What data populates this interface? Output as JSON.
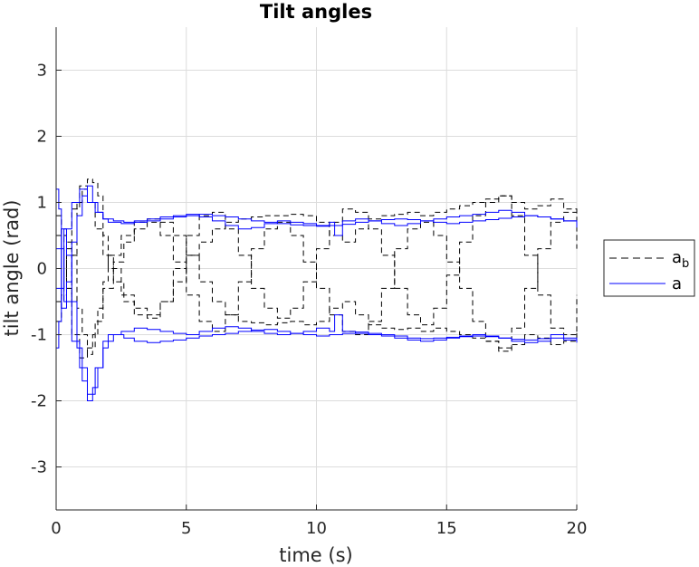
{
  "chart_data": {
    "type": "line",
    "title": "Tilt angles",
    "xlabel": "time (s)",
    "ylabel": "tilt angle (rad)",
    "xlim": [
      0,
      20
    ],
    "ylim": [
      -3.65,
      3.65
    ],
    "xticks": [
      0,
      5,
      10,
      15,
      20
    ],
    "xtick_labels": [
      "0",
      "5",
      "10",
      "15",
      "20"
    ],
    "yticks": [
      -3,
      -2,
      -1,
      0,
      1,
      2,
      3
    ],
    "ytick_labels": [
      "-3",
      "-2",
      "-1",
      "0",
      "1",
      "2",
      "3"
    ],
    "grid": true,
    "legend_placement": "outside-right",
    "legend": [
      {
        "label": "a",
        "subscript": "b",
        "style": "dashed",
        "color": "#000000"
      },
      {
        "label": "a",
        "style": "solid",
        "color": "#0000ff"
      }
    ],
    "series": [
      {
        "group": "a_b",
        "style": "dashed",
        "color": "#000000",
        "x": [
          0,
          0.2,
          0.4,
          0.6,
          0.8,
          1.0,
          1.2,
          1.4,
          1.6,
          1.8,
          2.0,
          2.5,
          3,
          3.5,
          4,
          4.5,
          5,
          5.5,
          6,
          6.5,
          7,
          7.5,
          8,
          8.5,
          9,
          9.5,
          10,
          10.5,
          11,
          11.5,
          12,
          12.5,
          13,
          13.5,
          14,
          14.5,
          15,
          15.5,
          16,
          16.5,
          17,
          17.5,
          18,
          18.5,
          19,
          19.5,
          20
        ],
        "y": [
          0.8,
          0.5,
          -0.5,
          0.2,
          1.0,
          1.2,
          1.35,
          1.3,
          1.1,
          0.5,
          0.0,
          -0.4,
          -0.6,
          -0.7,
          -0.5,
          -0.2,
          0.2,
          0.4,
          0.6,
          0.7,
          0.75,
          0.78,
          0.8,
          0.8,
          0.82,
          0.8,
          0.7,
          0.5,
          0.4,
          0.6,
          0.75,
          0.8,
          0.82,
          0.85,
          0.8,
          0.85,
          0.9,
          0.95,
          1.0,
          1.05,
          1.1,
          1.0,
          0.9,
          0.95,
          1.05,
          0.9,
          0.5
        ]
      },
      {
        "group": "a_b",
        "style": "dashed",
        "color": "#000000",
        "x": [
          0,
          0.2,
          0.4,
          0.6,
          0.8,
          1.0,
          1.2,
          1.4,
          1.6,
          1.8,
          2.0,
          2.5,
          3,
          3.5,
          4,
          4.5,
          5,
          5.5,
          6,
          6.5,
          7,
          7.5,
          8,
          8.5,
          9,
          9.5,
          10,
          10.5,
          11,
          11.5,
          12,
          12.5,
          13,
          13.5,
          14,
          14.5,
          15,
          15.5,
          16,
          16.5,
          17,
          17.5,
          18,
          18.5,
          19,
          19.5,
          20
        ],
        "y": [
          -0.8,
          -0.4,
          0.4,
          0.2,
          -0.6,
          -1.0,
          -1.3,
          -1.0,
          -0.6,
          -0.2,
          0.2,
          0.5,
          0.7,
          0.75,
          0.7,
          0.5,
          0.2,
          -0.2,
          -0.5,
          -0.7,
          -0.8,
          -0.82,
          -0.85,
          -0.82,
          -0.8,
          -0.85,
          -0.8,
          -0.6,
          -0.5,
          -0.7,
          -0.85,
          -0.9,
          -0.92,
          -0.9,
          -0.95,
          -0.9,
          -0.95,
          -1.0,
          -1.05,
          -1.1,
          -1.2,
          -1.15,
          -1.0,
          -1.05,
          -1.15,
          -1.1,
          -0.9
        ]
      },
      {
        "group": "a_b",
        "style": "dashed",
        "color": "#000000",
        "x": [
          0,
          0.3,
          0.6,
          0.9,
          1.2,
          1.5,
          1.8,
          2.2,
          2.6,
          3.0,
          3.5,
          4,
          4.5,
          5,
          5.5,
          6,
          6.5,
          7,
          7.5,
          8,
          8.5,
          9,
          9.5,
          10,
          10.5,
          11,
          11.5,
          12,
          12.5,
          13,
          13.5,
          14,
          14.5,
          15,
          15.5,
          16,
          16.5,
          17,
          17.5,
          18,
          18.5,
          19,
          19.5,
          20
        ],
        "y": [
          0.5,
          -0.3,
          -1.0,
          -1.35,
          -1.2,
          -0.8,
          -0.3,
          0.1,
          0.4,
          0.6,
          0.7,
          0.5,
          0.1,
          -0.4,
          -0.8,
          -0.95,
          -0.7,
          -0.2,
          0.3,
          0.6,
          0.7,
          0.5,
          0.1,
          -0.3,
          -0.7,
          -0.95,
          -1.0,
          -0.8,
          -0.3,
          0.3,
          0.6,
          0.7,
          0.5,
          0.1,
          -0.3,
          -0.8,
          -1.1,
          -1.25,
          -0.9,
          -0.3,
          0.3,
          0.7,
          0.85,
          0.3
        ]
      },
      {
        "group": "a_b",
        "style": "dashed",
        "color": "#000000",
        "x": [
          0,
          0.3,
          0.6,
          0.9,
          1.2,
          1.5,
          1.8,
          2.2,
          2.6,
          3.0,
          3.5,
          4,
          4.5,
          5,
          5.5,
          6,
          6.5,
          7,
          7.5,
          8,
          8.5,
          9,
          9.5,
          10,
          10.5,
          11,
          11.5,
          12,
          12.5,
          13,
          13.5,
          14,
          14.5,
          15,
          15.5,
          16,
          16.5,
          17,
          17.5,
          18,
          18.5,
          19,
          19.5,
          20
        ],
        "y": [
          -0.5,
          0.3,
          0.9,
          1.25,
          1.0,
          0.6,
          0.2,
          -0.2,
          -0.5,
          -0.7,
          -0.75,
          -0.5,
          0.0,
          0.5,
          0.8,
          0.85,
          0.6,
          0.2,
          -0.3,
          -0.6,
          -0.75,
          -0.6,
          -0.2,
          0.3,
          0.7,
          0.9,
          0.85,
          0.6,
          0.2,
          -0.3,
          -0.7,
          -0.85,
          -0.6,
          -0.1,
          0.4,
          0.8,
          1.0,
          1.1,
          0.8,
          0.2,
          -0.4,
          -0.9,
          -1.0,
          -0.4
        ]
      },
      {
        "group": "a",
        "style": "solid",
        "color": "#0000ff",
        "x": [
          0,
          0.1,
          0.2,
          0.4,
          0.6,
          0.8,
          1.0,
          1.2,
          1.4,
          1.6,
          1.8,
          2.0,
          2.5,
          3,
          3.5,
          4,
          4.5,
          5,
          5.5,
          6,
          6.5,
          7,
          7.5,
          8,
          8.5,
          9,
          9.5,
          10,
          10.5,
          10.7,
          11,
          11.5,
          12,
          12.5,
          13,
          13.5,
          14,
          14.5,
          15,
          15.5,
          16,
          16.5,
          17,
          17.5,
          18,
          18.5,
          19,
          19.5,
          20
        ],
        "y": [
          1.2,
          0.9,
          -0.6,
          -0.2,
          0.4,
          0.8,
          1.1,
          1.25,
          1.0,
          0.85,
          0.75,
          0.7,
          0.68,
          0.72,
          0.75,
          0.78,
          0.8,
          0.82,
          0.78,
          0.72,
          0.65,
          0.6,
          0.62,
          0.68,
          0.72,
          0.7,
          0.68,
          0.65,
          0.7,
          0.5,
          0.72,
          0.75,
          0.72,
          0.68,
          0.65,
          0.68,
          0.72,
          0.75,
          0.78,
          0.8,
          0.82,
          0.85,
          0.88,
          0.85,
          0.8,
          0.78,
          0.75,
          0.72,
          0.7
        ]
      },
      {
        "group": "a",
        "style": "solid",
        "color": "#0000ff",
        "x": [
          0,
          0.1,
          0.2,
          0.4,
          0.6,
          0.8,
          1.0,
          1.2,
          1.4,
          1.6,
          1.8,
          2.0,
          2.5,
          3,
          3.5,
          4,
          4.5,
          5,
          5.5,
          6,
          6.5,
          7,
          7.5,
          8,
          8.5,
          9,
          9.5,
          10,
          10.5,
          10.7,
          11,
          11.5,
          12,
          12.5,
          13,
          13.5,
          14,
          14.5,
          15,
          15.5,
          16,
          16.5,
          17,
          17.5,
          18,
          18.5,
          19,
          19.5,
          20
        ],
        "y": [
          -1.2,
          -0.8,
          0.6,
          0.2,
          -0.5,
          -1.2,
          -1.7,
          -2.0,
          -1.8,
          -1.5,
          -1.2,
          -1.0,
          -0.95,
          -0.9,
          -0.92,
          -0.95,
          -0.98,
          -1.0,
          -0.95,
          -0.9,
          -0.88,
          -0.9,
          -0.95,
          -0.98,
          -1.0,
          -0.98,
          -0.95,
          -0.9,
          -0.95,
          -0.7,
          -0.95,
          -0.98,
          -1.0,
          -1.02,
          -1.05,
          -1.08,
          -1.1,
          -1.08,
          -1.05,
          -1.02,
          -1.0,
          -1.02,
          -1.05,
          -1.1,
          -1.12,
          -1.1,
          -1.05,
          -1.08,
          -1.1
        ]
      },
      {
        "group": "a",
        "style": "solid",
        "color": "#0000ff",
        "x": [
          0,
          0.3,
          0.6,
          0.9,
          1.2,
          1.5,
          1.8,
          2.2,
          2.6,
          3,
          3.5,
          4,
          4.5,
          5,
          5.5,
          6,
          6.5,
          7,
          7.5,
          8,
          8.5,
          9,
          9.5,
          10,
          10.5,
          11,
          11.5,
          12,
          12.5,
          13,
          13.5,
          14,
          14.5,
          15,
          15.5,
          16,
          16.5,
          17,
          17.5,
          18,
          18.5,
          19,
          19.5,
          20
        ],
        "y": [
          0.3,
          -0.5,
          -1.1,
          -1.5,
          -1.9,
          -1.5,
          -1.1,
          -1.0,
          -1.05,
          -1.1,
          -1.12,
          -1.1,
          -1.08,
          -1.05,
          -1.02,
          -1.0,
          -0.98,
          -0.95,
          -0.93,
          -0.92,
          -0.95,
          -0.98,
          -1.0,
          -1.02,
          -1.0,
          -0.98,
          -0.96,
          -0.98,
          -1.0,
          -1.02,
          -1.05,
          -1.06,
          -1.05,
          -1.04,
          -1.03,
          -1.02,
          -1.03,
          -1.05,
          -1.07,
          -1.08,
          -1.06,
          -1.0,
          -1.05,
          -1.12
        ]
      },
      {
        "group": "a",
        "style": "solid",
        "color": "#0000ff",
        "x": [
          0,
          0.3,
          0.6,
          0.9,
          1.2,
          1.5,
          1.8,
          2.2,
          2.6,
          3,
          3.5,
          4,
          4.5,
          5,
          5.5,
          6,
          6.5,
          7,
          7.5,
          8,
          8.5,
          9,
          9.5,
          10,
          10.5,
          11,
          11.5,
          12,
          12.5,
          13,
          13.5,
          14,
          14.5,
          15,
          15.5,
          16,
          16.5,
          17,
          17.5,
          18,
          18.5,
          19,
          19.5,
          20
        ],
        "y": [
          -0.3,
          0.6,
          1.0,
          1.2,
          1.0,
          0.85,
          0.75,
          0.72,
          0.7,
          0.7,
          0.72,
          0.75,
          0.78,
          0.8,
          0.82,
          0.8,
          0.78,
          0.75,
          0.72,
          0.7,
          0.68,
          0.66,
          0.65,
          0.64,
          0.65,
          0.67,
          0.7,
          0.72,
          0.74,
          0.75,
          0.74,
          0.72,
          0.7,
          0.68,
          0.7,
          0.72,
          0.74,
          0.76,
          0.78,
          0.8,
          0.78,
          0.75,
          0.72,
          0.62
        ]
      }
    ]
  }
}
